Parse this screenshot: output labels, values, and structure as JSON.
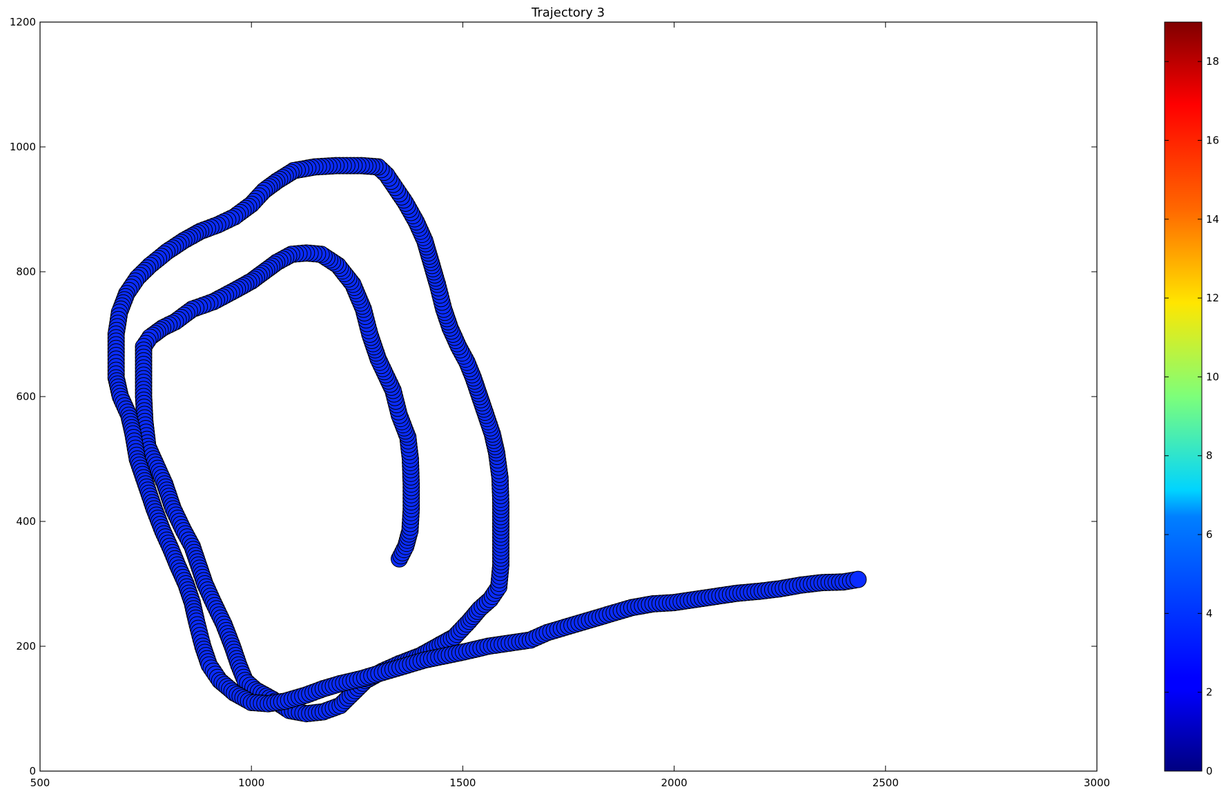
{
  "chart_data": {
    "type": "scatter",
    "title": "Trajectory 3",
    "xlabel": "",
    "ylabel": "",
    "xlim": [
      500,
      3000
    ],
    "ylim": [
      0,
      1200
    ],
    "x_ticks": [
      500,
      1000,
      1500,
      2000,
      2500,
      3000
    ],
    "y_ticks": [
      0,
      200,
      400,
      600,
      800,
      1000,
      1200
    ],
    "grid": false,
    "marker_color": "#0a2cff",
    "marker_edge": "#000000",
    "colorbar": {
      "range": [
        0,
        19
      ],
      "ticks": [
        0,
        2,
        4,
        6,
        8,
        10,
        12,
        14,
        16,
        18
      ],
      "colormap": "jet"
    },
    "path_waypoints": [
      [
        1350,
        340
      ],
      [
        1365,
        360
      ],
      [
        1375,
        385
      ],
      [
        1378,
        420
      ],
      [
        1378,
        460
      ],
      [
        1376,
        500
      ],
      [
        1370,
        535
      ],
      [
        1350,
        570
      ],
      [
        1335,
        610
      ],
      [
        1300,
        660
      ],
      [
        1280,
        700
      ],
      [
        1265,
        740
      ],
      [
        1240,
        780
      ],
      [
        1205,
        810
      ],
      [
        1165,
        828
      ],
      [
        1130,
        830
      ],
      [
        1095,
        828
      ],
      [
        1060,
        815
      ],
      [
        1030,
        800
      ],
      [
        1000,
        785
      ],
      [
        960,
        770
      ],
      [
        910,
        752
      ],
      [
        860,
        740
      ],
      [
        820,
        720
      ],
      [
        790,
        710
      ],
      [
        760,
        695
      ],
      [
        745,
        680
      ],
      [
        745,
        640
      ],
      [
        745,
        600
      ],
      [
        748,
        560
      ],
      [
        755,
        520
      ],
      [
        775,
        490
      ],
      [
        795,
        460
      ],
      [
        815,
        420
      ],
      [
        840,
        385
      ],
      [
        860,
        360
      ],
      [
        875,
        330
      ],
      [
        890,
        300
      ],
      [
        910,
        270
      ],
      [
        935,
        235
      ],
      [
        955,
        200
      ],
      [
        970,
        170
      ],
      [
        985,
        145
      ],
      [
        1010,
        130
      ],
      [
        1050,
        115
      ],
      [
        1090,
        97
      ],
      [
        1130,
        92
      ],
      [
        1170,
        95
      ],
      [
        1210,
        105
      ],
      [
        1240,
        125
      ],
      [
        1270,
        145
      ],
      [
        1310,
        160
      ],
      [
        1350,
        172
      ],
      [
        1400,
        185
      ],
      [
        1440,
        200
      ],
      [
        1480,
        215
      ],
      [
        1515,
        240
      ],
      [
        1540,
        260
      ],
      [
        1565,
        275
      ],
      [
        1585,
        295
      ],
      [
        1590,
        330
      ],
      [
        1590,
        380
      ],
      [
        1590,
        430
      ],
      [
        1588,
        470
      ],
      [
        1580,
        510
      ],
      [
        1570,
        540
      ],
      [
        1555,
        570
      ],
      [
        1540,
        600
      ],
      [
        1525,
        630
      ],
      [
        1510,
        655
      ],
      [
        1490,
        680
      ],
      [
        1470,
        710
      ],
      [
        1455,
        740
      ],
      [
        1440,
        780
      ],
      [
        1425,
        815
      ],
      [
        1410,
        850
      ],
      [
        1390,
        880
      ],
      [
        1365,
        910
      ],
      [
        1340,
        935
      ],
      [
        1320,
        955
      ],
      [
        1300,
        968
      ],
      [
        1260,
        970
      ],
      [
        1200,
        970
      ],
      [
        1150,
        968
      ],
      [
        1100,
        962
      ],
      [
        1060,
        945
      ],
      [
        1030,
        930
      ],
      [
        1000,
        908
      ],
      [
        960,
        888
      ],
      [
        920,
        875
      ],
      [
        880,
        865
      ],
      [
        840,
        850
      ],
      [
        800,
        832
      ],
      [
        760,
        810
      ],
      [
        730,
        790
      ],
      [
        705,
        765
      ],
      [
        688,
        735
      ],
      [
        680,
        700
      ],
      [
        680,
        660
      ],
      [
        680,
        630
      ],
      [
        690,
        600
      ],
      [
        710,
        570
      ],
      [
        720,
        540
      ],
      [
        730,
        500
      ],
      [
        750,
        460
      ],
      [
        770,
        420
      ],
      [
        790,
        385
      ],
      [
        810,
        355
      ],
      [
        825,
        330
      ],
      [
        845,
        300
      ],
      [
        860,
        270
      ],
      [
        870,
        240
      ],
      [
        885,
        200
      ],
      [
        900,
        170
      ],
      [
        925,
        145
      ],
      [
        960,
        125
      ],
      [
        1000,
        110
      ],
      [
        1040,
        108
      ],
      [
        1080,
        112
      ],
      [
        1130,
        122
      ],
      [
        1170,
        132
      ],
      [
        1210,
        140
      ],
      [
        1260,
        148
      ],
      [
        1310,
        158
      ],
      [
        1360,
        168
      ],
      [
        1410,
        178
      ],
      [
        1460,
        185
      ],
      [
        1510,
        192
      ],
      [
        1560,
        200
      ],
      [
        1610,
        205
      ],
      [
        1660,
        210
      ],
      [
        1700,
        222
      ],
      [
        1750,
        232
      ],
      [
        1800,
        242
      ],
      [
        1850,
        252
      ],
      [
        1900,
        262
      ],
      [
        1950,
        268
      ],
      [
        2000,
        270
      ],
      [
        2050,
        275
      ],
      [
        2100,
        280
      ],
      [
        2150,
        285
      ],
      [
        2200,
        288
      ],
      [
        2250,
        292
      ],
      [
        2300,
        298
      ],
      [
        2350,
        302
      ],
      [
        2400,
        303
      ],
      [
        2435,
        307
      ]
    ]
  }
}
